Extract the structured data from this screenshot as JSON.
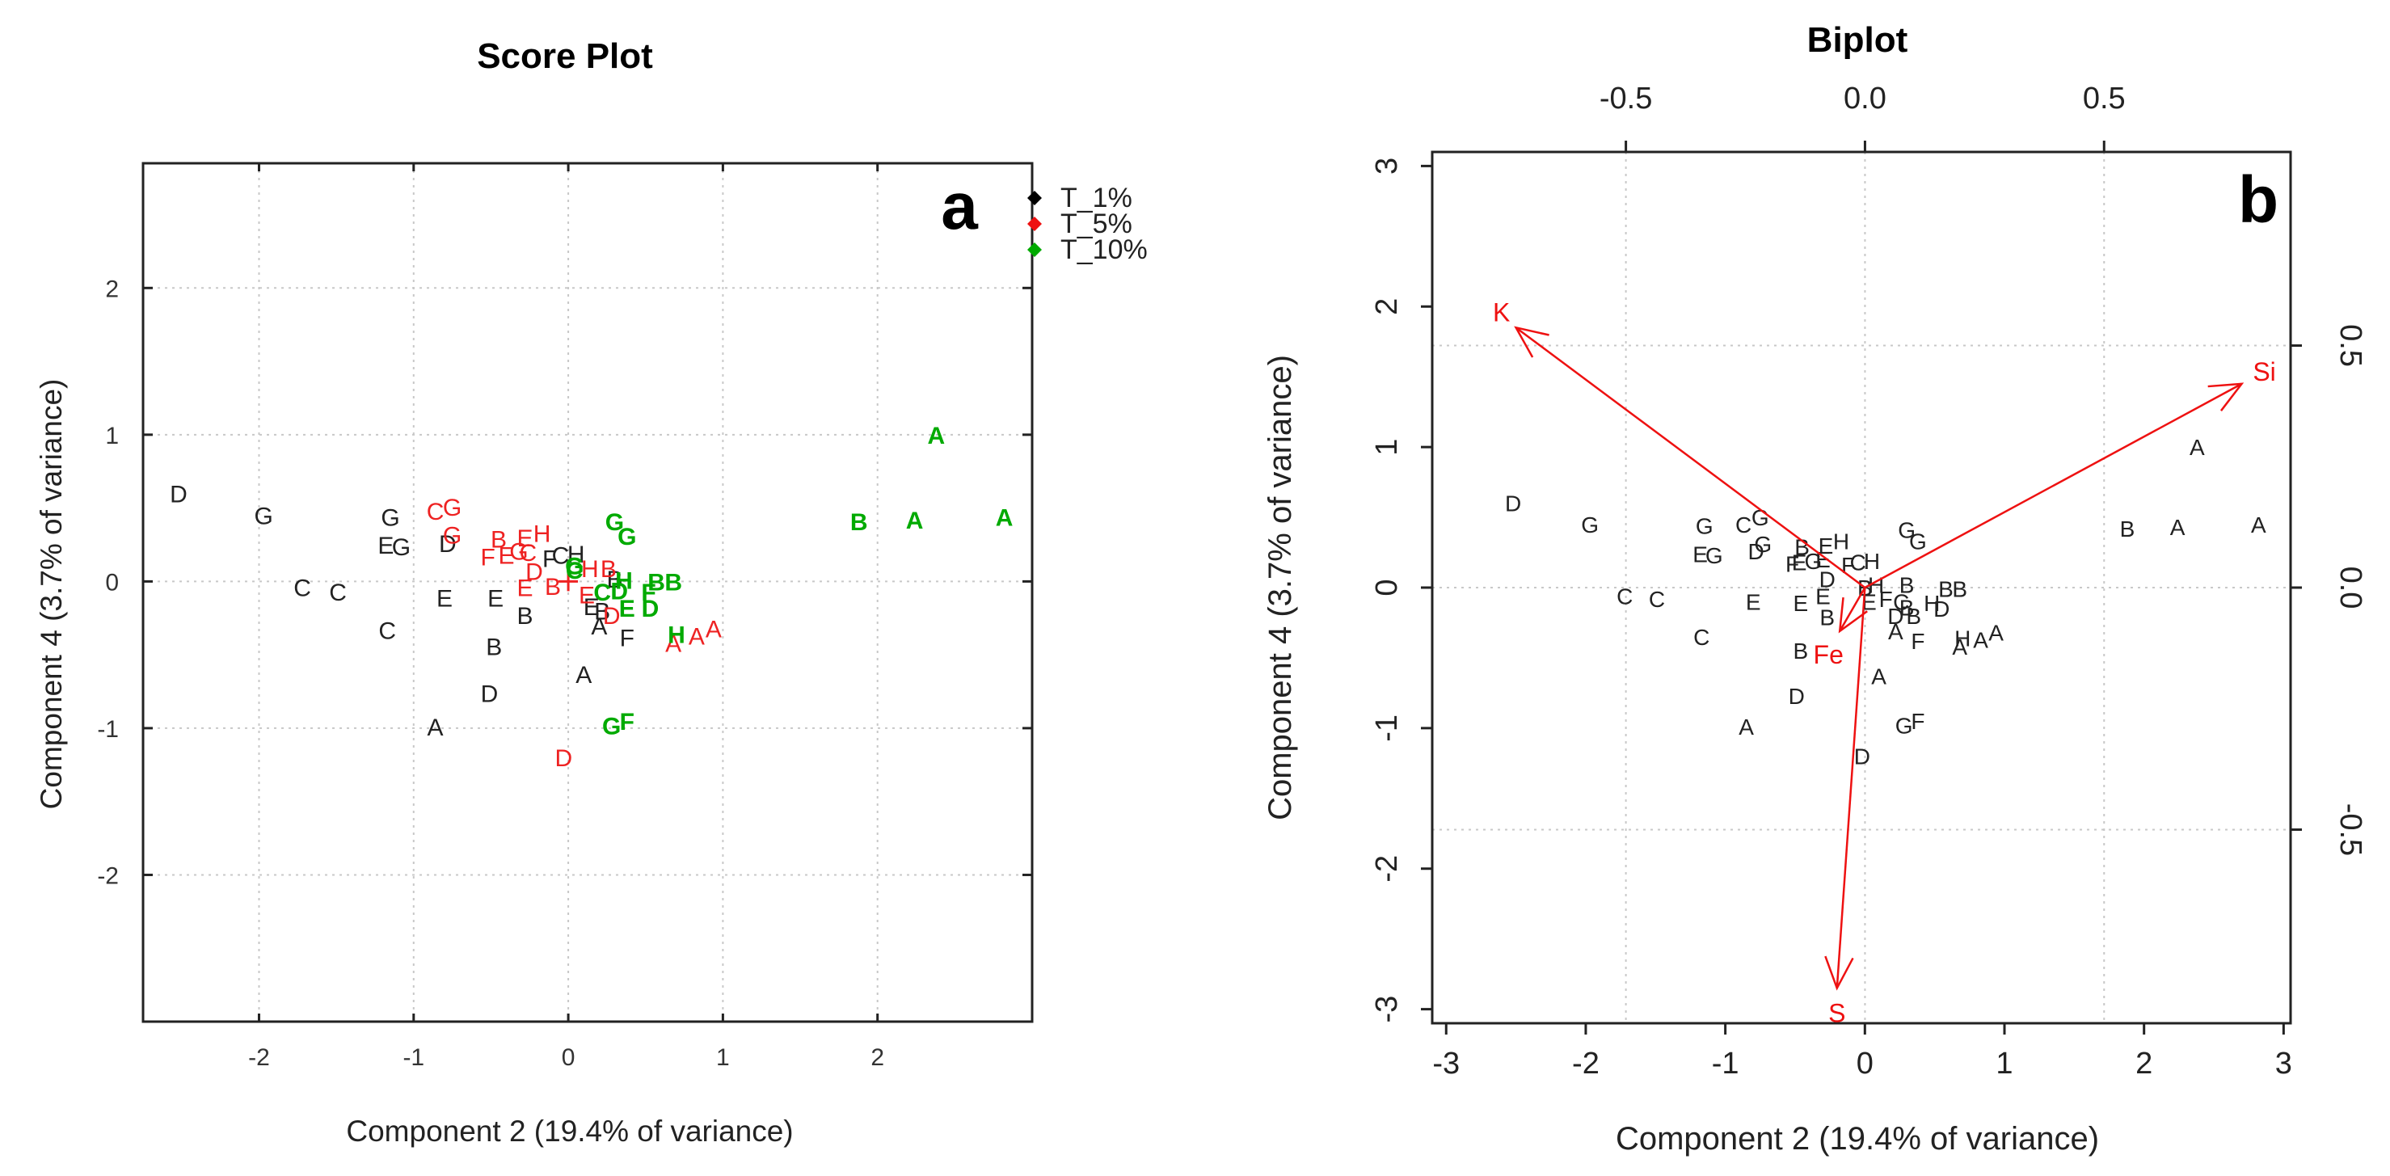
{
  "chart_data": [
    {
      "panel_letter": "a",
      "type": "scatter",
      "title": "Score Plot",
      "xlabel": "Component 2 (19.4% of variance)",
      "ylabel": "Component 4 (3.7% of variance)",
      "xlim": [
        -2.75,
        3.0
      ],
      "ylim": [
        -3.0,
        2.85
      ],
      "xticks": [
        "-2",
        "-1",
        "0",
        "1",
        "2"
      ],
      "xtick_values": [
        -2,
        -1,
        0,
        1,
        2
      ],
      "yticks": [
        "-2",
        "-1",
        "0",
        "1",
        "2"
      ],
      "ytick_values": [
        -2,
        -1,
        0,
        1,
        2
      ],
      "grid": true,
      "legend_position": "top-right, outside plot area",
      "legend": [
        {
          "label": "T_1%",
          "color": "#000000"
        },
        {
          "label": "T_5%",
          "color": "#ee1111"
        },
        {
          "label": "T_10%",
          "color": "#00aa00"
        }
      ],
      "series": [
        {
          "name": "T_1%",
          "color": "#222222",
          "points": [
            {
              "label": "D",
              "x": -2.52,
              "y": 0.6
            },
            {
              "label": "G",
              "x": -1.97,
              "y": 0.45
            },
            {
              "label": "G",
              "x": -1.15,
              "y": 0.44
            },
            {
              "label": "E",
              "x": -1.18,
              "y": 0.25
            },
            {
              "label": "G",
              "x": -1.08,
              "y": 0.24
            },
            {
              "label": "D",
              "x": -0.78,
              "y": 0.26
            },
            {
              "label": "C",
              "x": -1.72,
              "y": -0.04
            },
            {
              "label": "C",
              "x": -1.49,
              "y": -0.07
            },
            {
              "label": "C",
              "x": -1.17,
              "y": -0.33
            },
            {
              "label": "E",
              "x": -0.8,
              "y": -0.11
            },
            {
              "label": "E",
              "x": -0.47,
              "y": -0.11
            },
            {
              "label": "B",
              "x": -0.48,
              "y": -0.44
            },
            {
              "label": "B",
              "x": -0.28,
              "y": -0.23
            },
            {
              "label": "D",
              "x": -0.51,
              "y": -0.76
            },
            {
              "label": "A",
              "x": -0.86,
              "y": -0.99
            },
            {
              "label": "F",
              "x": -0.12,
              "y": 0.16
            },
            {
              "label": "C",
              "x": -0.05,
              "y": 0.18
            },
            {
              "label": "H",
              "x": 0.05,
              "y": 0.19
            },
            {
              "label": "B",
              "x": 0.3,
              "y": 0.02
            },
            {
              "label": "E",
              "x": 0.15,
              "y": -0.17
            },
            {
              "label": "B",
              "x": 0.22,
              "y": -0.2
            },
            {
              "label": "A",
              "x": 0.2,
              "y": -0.3
            },
            {
              "label": "F",
              "x": 0.38,
              "y": -0.38
            },
            {
              "label": "A",
              "x": 0.1,
              "y": -0.63
            }
          ]
        },
        {
          "name": "T_5%",
          "color": "#ee2222",
          "points": [
            {
              "label": "C",
              "x": -0.86,
              "y": 0.48
            },
            {
              "label": "G",
              "x": -0.75,
              "y": 0.51
            },
            {
              "label": "G",
              "x": -0.75,
              "y": 0.32
            },
            {
              "label": "B",
              "x": -0.45,
              "y": 0.29
            },
            {
              "label": "E",
              "x": -0.28,
              "y": 0.3
            },
            {
              "label": "H",
              "x": -0.17,
              "y": 0.33
            },
            {
              "label": "F",
              "x": -0.52,
              "y": 0.17
            },
            {
              "label": "E",
              "x": -0.4,
              "y": 0.18
            },
            {
              "label": "C",
              "x": -0.26,
              "y": 0.2
            },
            {
              "label": "G",
              "x": -0.32,
              "y": 0.21
            },
            {
              "label": "D",
              "x": -0.22,
              "y": 0.07
            },
            {
              "label": "E",
              "x": -0.28,
              "y": -0.04
            },
            {
              "label": "B",
              "x": -0.1,
              "y": -0.03
            },
            {
              "label": "E",
              "x": 0.12,
              "y": -0.09
            },
            {
              "label": "H",
              "x": 0.14,
              "y": 0.09
            },
            {
              "label": "B",
              "x": 0.26,
              "y": 0.09
            },
            {
              "label": "D",
              "x": 0.28,
              "y": -0.23
            },
            {
              "label": "A",
              "x": 0.68,
              "y": -0.42
            },
            {
              "label": "A",
              "x": 0.83,
              "y": -0.37
            },
            {
              "label": "A",
              "x": 0.94,
              "y": -0.32
            },
            {
              "label": "D",
              "x": -0.03,
              "y": -1.2
            }
          ]
        },
        {
          "name": "T_10%",
          "color": "#00aa00",
          "points": [
            {
              "label": "A",
              "x": 2.38,
              "y": 1.0
            },
            {
              "label": "A",
              "x": 2.82,
              "y": 0.44
            },
            {
              "label": "A",
              "x": 2.24,
              "y": 0.42
            },
            {
              "label": "B",
              "x": 1.88,
              "y": 0.41
            },
            {
              "label": "G",
              "x": 0.3,
              "y": 0.41
            },
            {
              "label": "G",
              "x": 0.38,
              "y": 0.31
            },
            {
              "label": "G",
              "x": 0.04,
              "y": 0.11
            },
            {
              "label": "C",
              "x": 0.04,
              "y": 0.08
            },
            {
              "label": "H",
              "x": 0.36,
              "y": 0.01
            },
            {
              "label": "B",
              "x": 0.57,
              "y": 0.0
            },
            {
              "label": "B",
              "x": 0.68,
              "y": 0.0
            },
            {
              "label": "C",
              "x": 0.22,
              "y": -0.07
            },
            {
              "label": "D",
              "x": 0.33,
              "y": -0.06
            },
            {
              "label": "F",
              "x": 0.52,
              "y": -0.07
            },
            {
              "label": "E",
              "x": 0.38,
              "y": -0.18
            },
            {
              "label": "D",
              "x": 0.53,
              "y": -0.18
            },
            {
              "label": "H",
              "x": 0.7,
              "y": -0.36
            },
            {
              "label": "G",
              "x": 0.28,
              "y": -0.98
            },
            {
              "label": "F",
              "x": 0.38,
              "y": -0.95
            }
          ]
        }
      ]
    },
    {
      "panel_letter": "b",
      "type": "scatter",
      "title": "Biplot",
      "xlabel": "Component 2 (19.4% of variance)",
      "ylabel": "Component 4 (3.7% of variance)",
      "xlim": [
        -3.1,
        3.05
      ],
      "ylim": [
        -3.1,
        3.1
      ],
      "xticks": [
        "-3",
        "-2",
        "-1",
        "0",
        "1",
        "2",
        "3"
      ],
      "xtick_values": [
        -3,
        -2,
        -1,
        0,
        1,
        2,
        3
      ],
      "yticks": [
        "-3",
        "-2",
        "-1",
        "0",
        "1",
        "2",
        "3"
      ],
      "ytick_values": [
        -3,
        -2,
        -1,
        0,
        1,
        2,
        3
      ],
      "top_xticks": [
        "-0.5",
        "0.0",
        "0.5"
      ],
      "top_xtick_values": [
        -0.5,
        0.0,
        0.5
      ],
      "top_xlim": [
        -0.905,
        0.89
      ],
      "right_yticks": [
        "-0.5",
        "0.0",
        "0.5"
      ],
      "right_ytick_values": [
        -0.5,
        0.0,
        0.5
      ],
      "right_ylim": [
        -0.9,
        0.9
      ],
      "grid": true,
      "point_color": "#222222",
      "loadings_color": "#ee1111",
      "loadings": [
        {
          "label": "K",
          "x": -2.5,
          "y": 1.85
        },
        {
          "label": "Si",
          "x": 2.7,
          "y": 1.45
        },
        {
          "label": "S",
          "x": -0.2,
          "y": -2.85
        },
        {
          "label": "Fe",
          "x": -0.18,
          "y": -0.31
        }
      ],
      "points": [
        {
          "label": "D",
          "x": -2.52,
          "y": 0.6
        },
        {
          "label": "G",
          "x": -1.97,
          "y": 0.45
        },
        {
          "label": "G",
          "x": -1.15,
          "y": 0.44
        },
        {
          "label": "C",
          "x": -0.87,
          "y": 0.45
        },
        {
          "label": "G",
          "x": -0.75,
          "y": 0.5
        },
        {
          "label": "D",
          "x": -0.78,
          "y": 0.26
        },
        {
          "label": "G",
          "x": -0.73,
          "y": 0.31
        },
        {
          "label": "E",
          "x": -1.18,
          "y": 0.24
        },
        {
          "label": "G",
          "x": -1.08,
          "y": 0.23
        },
        {
          "label": "C",
          "x": -1.72,
          "y": -0.06
        },
        {
          "label": "C",
          "x": -1.49,
          "y": -0.08
        },
        {
          "label": "C",
          "x": -1.17,
          "y": -0.35
        },
        {
          "label": "E",
          "x": -0.8,
          "y": -0.1
        },
        {
          "label": "E",
          "x": -0.46,
          "y": -0.11
        },
        {
          "label": "B",
          "x": -0.27,
          "y": -0.21
        },
        {
          "label": "B",
          "x": -0.46,
          "y": -0.45
        },
        {
          "label": "D",
          "x": -0.49,
          "y": -0.77
        },
        {
          "label": "A",
          "x": -0.85,
          "y": -0.99
        },
        {
          "label": "B",
          "x": -0.45,
          "y": 0.29
        },
        {
          "label": "E",
          "x": -0.28,
          "y": 0.3
        },
        {
          "label": "H",
          "x": -0.17,
          "y": 0.33
        },
        {
          "label": "F",
          "x": -0.52,
          "y": 0.17
        },
        {
          "label": "E",
          "x": -0.47,
          "y": 0.18
        },
        {
          "label": "G",
          "x": -0.37,
          "y": 0.19
        },
        {
          "label": "E",
          "x": -0.3,
          "y": 0.2
        },
        {
          "label": "F",
          "x": -0.12,
          "y": 0.16
        },
        {
          "label": "C",
          "x": -0.05,
          "y": 0.18
        },
        {
          "label": "H",
          "x": 0.05,
          "y": 0.19
        },
        {
          "label": "D",
          "x": -0.27,
          "y": 0.06
        },
        {
          "label": "E",
          "x": -0.3,
          "y": -0.06
        },
        {
          "label": "B",
          "x": 0.0,
          "y": 0.0
        },
        {
          "label": "H",
          "x": 0.08,
          "y": 0.02
        },
        {
          "label": "B",
          "x": 0.3,
          "y": 0.02
        },
        {
          "label": "E",
          "x": 0.03,
          "y": -0.1
        },
        {
          "label": "F",
          "x": 0.15,
          "y": -0.08
        },
        {
          "label": "C",
          "x": 0.26,
          "y": -0.1
        },
        {
          "label": "B",
          "x": 0.3,
          "y": -0.14
        },
        {
          "label": "D",
          "x": 0.22,
          "y": -0.2
        },
        {
          "label": "B",
          "x": 0.35,
          "y": -0.2
        },
        {
          "label": "H",
          "x": 0.48,
          "y": -0.11
        },
        {
          "label": "D",
          "x": 0.55,
          "y": -0.15
        },
        {
          "label": "B",
          "x": 0.58,
          "y": -0.01
        },
        {
          "label": "B",
          "x": 0.68,
          "y": -0.01
        },
        {
          "label": "A",
          "x": 0.22,
          "y": -0.31
        },
        {
          "label": "F",
          "x": 0.38,
          "y": -0.38
        },
        {
          "label": "A",
          "x": 0.68,
          "y": -0.42
        },
        {
          "label": "H",
          "x": 0.7,
          "y": -0.36
        },
        {
          "label": "A",
          "x": 0.83,
          "y": -0.37
        },
        {
          "label": "A",
          "x": 0.94,
          "y": -0.32
        },
        {
          "label": "A",
          "x": 0.1,
          "y": -0.63
        },
        {
          "label": "D",
          "x": -0.02,
          "y": -1.2
        },
        {
          "label": "G",
          "x": 0.28,
          "y": -0.98
        },
        {
          "label": "F",
          "x": 0.38,
          "y": -0.95
        },
        {
          "label": "G",
          "x": 0.3,
          "y": 0.41
        },
        {
          "label": "G",
          "x": 0.38,
          "y": 0.33
        },
        {
          "label": "A",
          "x": 2.38,
          "y": 1.0
        },
        {
          "label": "B",
          "x": 1.88,
          "y": 0.42
        },
        {
          "label": "A",
          "x": 2.24,
          "y": 0.43
        },
        {
          "label": "A",
          "x": 2.82,
          "y": 0.45
        }
      ]
    }
  ]
}
